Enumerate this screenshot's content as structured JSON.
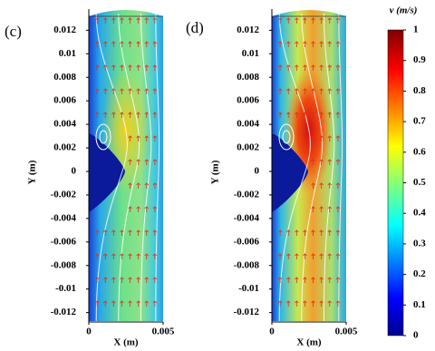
{
  "chart_data": [
    {
      "type": "contour",
      "panel_label": "(c)",
      "xlabel": "X (m)",
      "ylabel": "Y (m)",
      "xlim": [
        0,
        0.005
      ],
      "xticks": [
        0,
        0.005
      ],
      "ylim": [
        -0.0128,
        0.0138
      ],
      "yticks": [
        -0.012,
        -0.01,
        -0.008,
        -0.006,
        -0.004,
        -0.002,
        0,
        0.002,
        0.004,
        0.006,
        0.008,
        0.01,
        0.012
      ]
    },
    {
      "type": "contour",
      "panel_label": "(d)",
      "xlabel": "X (m)",
      "ylabel": "Y (m)",
      "xlim": [
        0,
        0.005
      ],
      "xticks": [
        0,
        0.005
      ],
      "ylim": [
        -0.0128,
        0.0138
      ],
      "yticks": [
        -0.012,
        -0.01,
        -0.008,
        -0.006,
        -0.004,
        -0.002,
        0,
        0.002,
        0.004,
        0.006,
        0.008,
        0.01,
        0.012
      ]
    },
    {
      "type": "colorbar",
      "title": "v (m/s)",
      "ylim": [
        0,
        1
      ],
      "yticks": [
        0,
        0.1,
        0.2,
        0.3,
        0.4,
        0.5,
        0.6,
        0.7,
        0.8,
        0.9,
        1
      ]
    }
  ]
}
